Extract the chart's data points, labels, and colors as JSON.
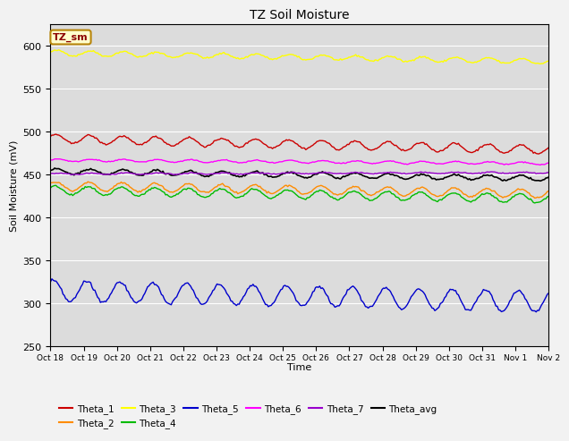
{
  "title": "TZ Soil Moisture",
  "ylabel": "Soil Moisture (mV)",
  "xlabel": "Time",
  "legend_label": "TZ_sm",
  "ylim": [
    250,
    625
  ],
  "yticks": [
    250,
    300,
    350,
    400,
    450,
    500,
    550,
    600
  ],
  "x_tick_labels": [
    "Oct 18",
    "Oct 19",
    "Oct 20",
    "Oct 21",
    "Oct 22",
    "Oct 23",
    "Oct 24",
    "Oct 25",
    "Oct 26",
    "Oct 27",
    "Oct 28",
    "Oct 29",
    "Oct 30",
    "Oct 31",
    "Nov 1",
    "Nov 2"
  ],
  "num_days": 15,
  "background_color": "#dcdcdc",
  "fig_facecolor": "#f2f2f2",
  "colors": {
    "Theta_1": "#cc0000",
    "Theta_2": "#ff8c00",
    "Theta_3": "#ffff00",
    "Theta_4": "#00bb00",
    "Theta_5": "#0000cc",
    "Theta_6": "#ff00ff",
    "Theta_7": "#9900cc",
    "Theta_avg": "#000000"
  },
  "legend_row1": [
    "Theta_1",
    "Theta_2",
    "Theta_3",
    "Theta_4",
    "Theta_5",
    "Theta_6"
  ],
  "legend_row2": [
    "Theta_7",
    "Theta_avg"
  ]
}
